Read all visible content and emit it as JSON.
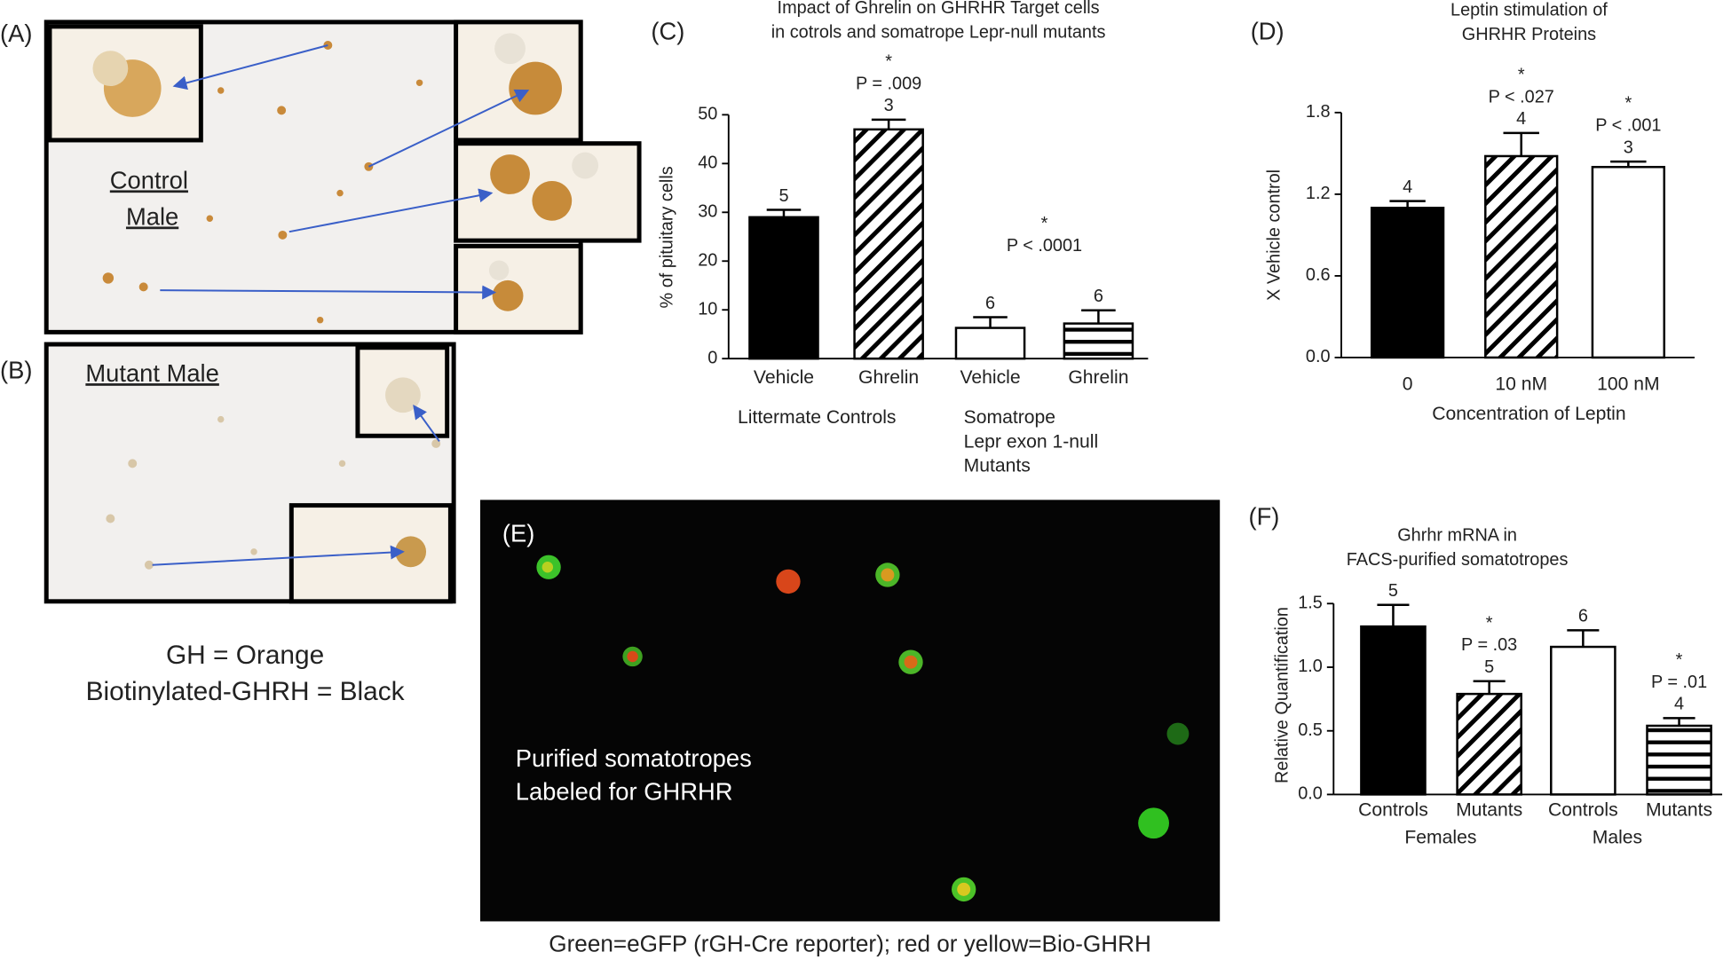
{
  "panels": {
    "a": {
      "label": "(A)",
      "lines": [
        "Control",
        "Male"
      ]
    },
    "b": {
      "label": "(B)",
      "line": "Mutant Male"
    },
    "ab_caption": [
      "GH = Orange",
      "Biotinylated-GHRH = Black"
    ],
    "e": {
      "label": "(E)",
      "lines": [
        "Purified somatotropes",
        "Labeled for GHRHR"
      ],
      "caption": "Green=eGFP (rGH-Cre reporter); red or yellow=Bio-GHRH"
    }
  },
  "chart_data": [
    {
      "type": "bar",
      "label": "(C)",
      "title": [
        "Impact of Ghrelin on GHRHR Target cells",
        "in cotrols and somatrope Lepr-null mutants"
      ],
      "ylabel": "% of pituitary cells",
      "categories": [
        "Vehicle",
        "Ghrelin",
        "Vehicle",
        "Ghrelin"
      ],
      "groups": [
        [
          "Littermate Controls"
        ],
        [
          "Somatrope",
          "Lepr exon 1-null",
          "Mutants"
        ]
      ],
      "values": [
        29,
        47,
        6.3,
        7.2
      ],
      "errors": [
        1.5,
        2,
        2.2,
        2.7
      ],
      "n": [
        5,
        3,
        6,
        6
      ],
      "fills": [
        "solid",
        "diagonal",
        "open",
        "horizontal"
      ],
      "significance": [
        {
          "bars": [
            1
          ],
          "mark": "*",
          "p": "P = .009"
        },
        {
          "bars": [
            2,
            3
          ],
          "mark": "*",
          "p": "P < .0001"
        }
      ],
      "ylim": [
        0,
        50
      ],
      "yticks": [
        0,
        10,
        20,
        30,
        40,
        50
      ]
    },
    {
      "type": "bar",
      "label": "(D)",
      "title": [
        "Leptin stimulation of",
        "GHRHR Proteins"
      ],
      "ylabel": "X Vehicle control",
      "xlabel": "Concentration of Leptin",
      "categories": [
        "0",
        "10 nM",
        "100 nM"
      ],
      "values": [
        1.1,
        1.48,
        1.4
      ],
      "errors": [
        0.05,
        0.17,
        0.04
      ],
      "n": [
        4,
        4,
        3
      ],
      "fills": [
        "solid",
        "diagonal",
        "open"
      ],
      "significance": [
        {
          "bars": [
            1
          ],
          "mark": "*",
          "p": "P < .027"
        },
        {
          "bars": [
            2
          ],
          "mark": "*",
          "p": "P < .001"
        }
      ],
      "ylim": [
        0,
        1.8
      ],
      "yticks": [
        {
          "value": 0,
          "label": "0.0"
        },
        {
          "value": 0.6,
          "label": "0.6"
        },
        {
          "value": 1.2,
          "label": "1.2"
        },
        {
          "value": 1.8,
          "label": "1.8"
        }
      ]
    },
    {
      "type": "bar",
      "label": "(F)",
      "title": [
        "Ghrhr mRNA in",
        "FACS-purified somatotropes"
      ],
      "ylabel": "Relative Quantification",
      "categories": [
        "Controls",
        "Mutants",
        "Controls",
        "Mutants"
      ],
      "groups": [
        [
          "Females"
        ],
        [
          "Males"
        ]
      ],
      "values": [
        1.32,
        0.79,
        1.16,
        0.54
      ],
      "errors": [
        0.17,
        0.1,
        0.13,
        0.06
      ],
      "n": [
        5,
        5,
        6,
        4
      ],
      "fills": [
        "solid",
        "diagonal",
        "open",
        "horizontal"
      ],
      "significance": [
        {
          "bars": [
            1
          ],
          "mark": "*",
          "p": "P = .03"
        },
        {
          "bars": [
            3
          ],
          "mark": "*",
          "p": "P = .01"
        }
      ],
      "ylim": [
        0,
        1.5
      ],
      "yticks": [
        {
          "value": 0,
          "label": "0.0"
        },
        {
          "value": 0.5,
          "label": "0.5"
        },
        {
          "value": 1,
          "label": "1.0"
        },
        {
          "value": 1.5,
          "label": "1.5"
        }
      ]
    }
  ]
}
